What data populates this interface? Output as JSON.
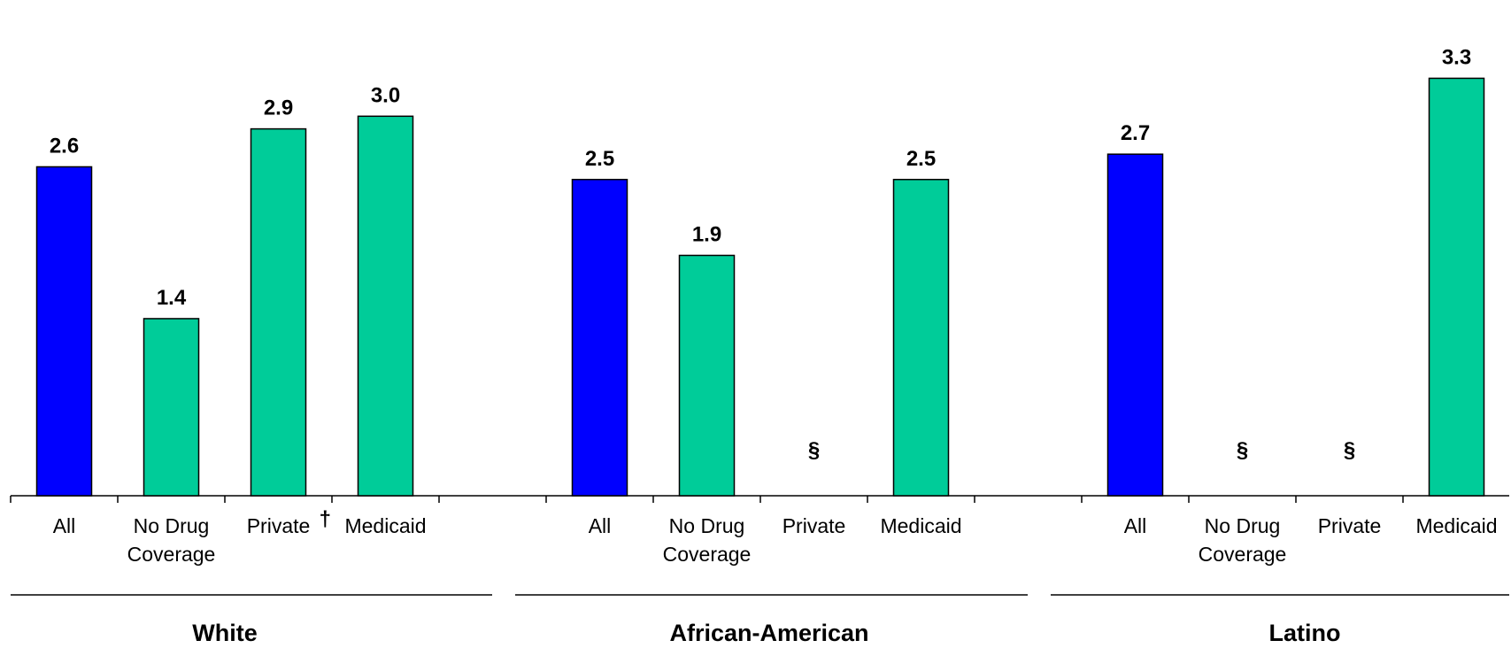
{
  "chart_data": {
    "type": "bar",
    "ylim": [
      0,
      3.5
    ],
    "grid": false,
    "colors": {
      "all": "#0000FF",
      "coverage": "#00CC99"
    },
    "groups": [
      {
        "name": "White",
        "bars": [
          {
            "label": [
              "All"
            ],
            "value": 2.6,
            "label_text": "2.6",
            "kind": "all"
          },
          {
            "label": [
              "No Drug",
              "Coverage"
            ],
            "value": 1.4,
            "label_text": "1.4",
            "kind": "coverage"
          },
          {
            "label": [
              "Private"
            ],
            "value": 2.9,
            "label_text": "2.9",
            "kind": "coverage",
            "footnote": "†"
          },
          {
            "label": [
              "Medicaid"
            ],
            "value": 3.0,
            "label_text": "3.0",
            "kind": "coverage"
          }
        ]
      },
      {
        "name": "African-American",
        "bars": [
          {
            "label": [
              "All"
            ],
            "value": 2.5,
            "label_text": "2.5",
            "kind": "all"
          },
          {
            "label": [
              "No Drug",
              "Coverage"
            ],
            "value": 1.9,
            "label_text": "1.9",
            "kind": "coverage"
          },
          {
            "label": [
              "Private"
            ],
            "value": null,
            "label_text": "§",
            "kind": "coverage"
          },
          {
            "label": [
              "Medicaid"
            ],
            "value": 2.5,
            "label_text": "2.5",
            "kind": "coverage"
          }
        ]
      },
      {
        "name": "Latino",
        "bars": [
          {
            "label": [
              "All"
            ],
            "value": 2.7,
            "label_text": "2.7",
            "kind": "all"
          },
          {
            "label": [
              "No Drug",
              "Coverage"
            ],
            "value": null,
            "label_text": "§",
            "kind": "coverage"
          },
          {
            "label": [
              "Private"
            ],
            "value": null,
            "label_text": "§",
            "kind": "coverage"
          },
          {
            "label": [
              "Medicaid"
            ],
            "value": 3.3,
            "label_text": "3.3",
            "kind": "coverage"
          }
        ]
      }
    ]
  }
}
